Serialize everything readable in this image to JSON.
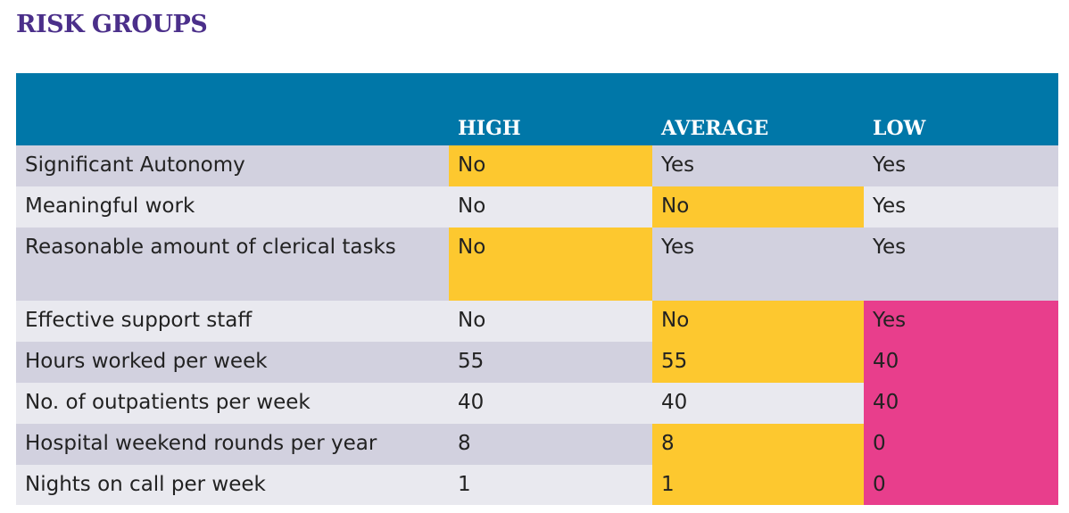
{
  "header": {
    "title": "RISK GROUPS"
  },
  "table": {
    "columns": [
      "HIGH",
      "AVERAGE",
      "LOW"
    ],
    "rows": [
      [
        "Significant Autonomy",
        "No",
        "Yes",
        "Yes"
      ],
      [
        "Meaningful work",
        "No",
        "No",
        "Yes"
      ],
      [
        "Reasonable amount of clerical tasks",
        "No",
        "Yes",
        "Yes"
      ],
      [
        "Effective support staff",
        "No",
        "No",
        "Yes"
      ],
      [
        "Hours worked per week",
        55,
        55,
        40
      ],
      [
        "No. of outpatients per week",
        40,
        40,
        40
      ],
      [
        "Hospital weekend rounds per year",
        8,
        8,
        0
      ],
      [
        "Nights on call per week",
        1,
        1,
        0
      ]
    ]
  }
}
